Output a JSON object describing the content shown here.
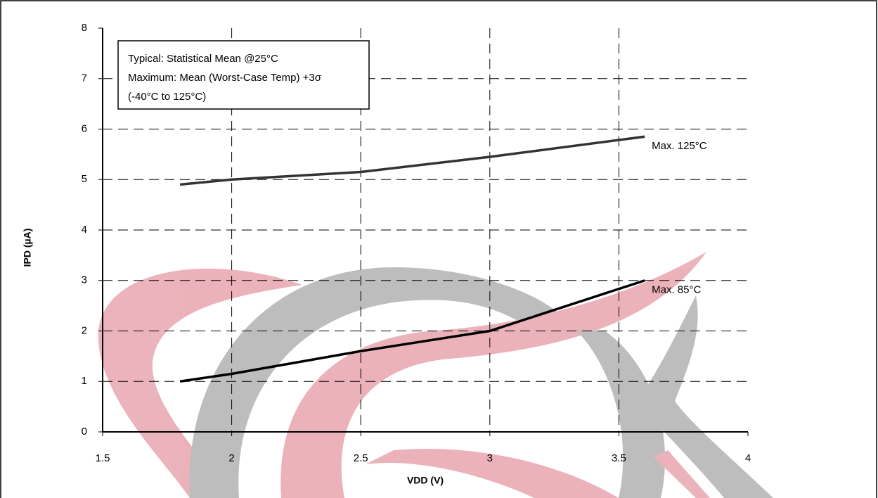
{
  "chart_data": {
    "type": "line",
    "x_label": "IPD (µA)",
    "y_label_note": null,
    "xlabel": "VDD (V)",
    "annotations": [
      "Typical: Statistical Mean @25°C",
      "Maximum: Mean (Worst-Case Temp) +3σ",
      "(-40°C to 125°C)"
    ],
    "x": [
      1.8,
      2,
      2.5,
      3,
      3.6
    ],
    "series": [
      {
        "name": "Max. 125°C",
        "color": "#333333",
        "values": [
          4.9,
          5.0,
          5.15,
          5.45,
          5.85
        ]
      },
      {
        "name": "Max. 85°C",
        "color": "#000000",
        "values": [
          1.0,
          1.15,
          1.6,
          2.0,
          3.0
        ]
      }
    ],
    "xlim": [
      1.5,
      4
    ],
    "xticks": [
      1.5,
      2,
      2.5,
      3,
      3.5,
      4
    ],
    "ylim": [
      0,
      8
    ],
    "yticks": [
      0,
      1,
      2,
      3,
      4,
      5,
      6,
      7,
      8
    ],
    "grid": true
  }
}
